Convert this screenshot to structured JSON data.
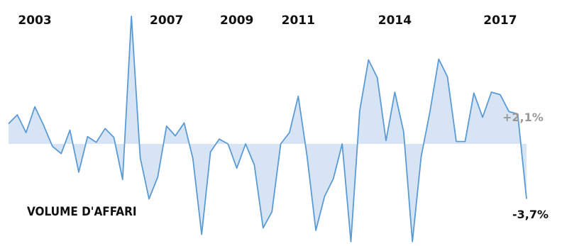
{
  "chart_data": {
    "type": "area",
    "title": "",
    "series_label": "VOLUME D'AFFARI",
    "year_labels": [
      {
        "label": "2003",
        "index": 3
      },
      {
        "label": "2007",
        "index": 18
      },
      {
        "label": "2009",
        "index": 26
      },
      {
        "label": "2011",
        "index": 33
      },
      {
        "label": "2014",
        "index": 44
      },
      {
        "label": "2017",
        "index": 56
      }
    ],
    "values": [
      2.5,
      3.6,
      1.4,
      4.6,
      2.3,
      -0.3,
      -1.2,
      1.7,
      -3.5,
      0.9,
      0.2,
      1.9,
      0.8,
      -4.4,
      15.8,
      -1.7,
      -6.8,
      -4.1,
      2.2,
      1.0,
      2.6,
      -1.8,
      -11.2,
      -1.0,
      0.6,
      0.0,
      -3.0,
      0.0,
      -2.6,
      -10.4,
      -8.4,
      0.0,
      1.4,
      5.9,
      -1.5,
      -10.7,
      -6.5,
      -4.3,
      0.0,
      -12.1,
      4.1,
      10.4,
      8.2,
      0.4,
      6.4,
      1.5,
      -12.1,
      -1.6,
      4.0,
      10.5,
      8.3,
      0.3,
      0.3,
      6.3,
      3.3,
      6.4,
      6.1,
      4.0,
      3.7,
      -6.8
    ],
    "y_range": [
      -12.1,
      15.8
    ],
    "zero_line": true,
    "series_color": "#5b9bd5",
    "fill_color": "#d6e4f4",
    "annotations": [
      {
        "text": "+2,1%",
        "index": 58,
        "color": "#999999"
      },
      {
        "text": "-3,7%",
        "index": 59,
        "color": "#111111"
      }
    ]
  }
}
